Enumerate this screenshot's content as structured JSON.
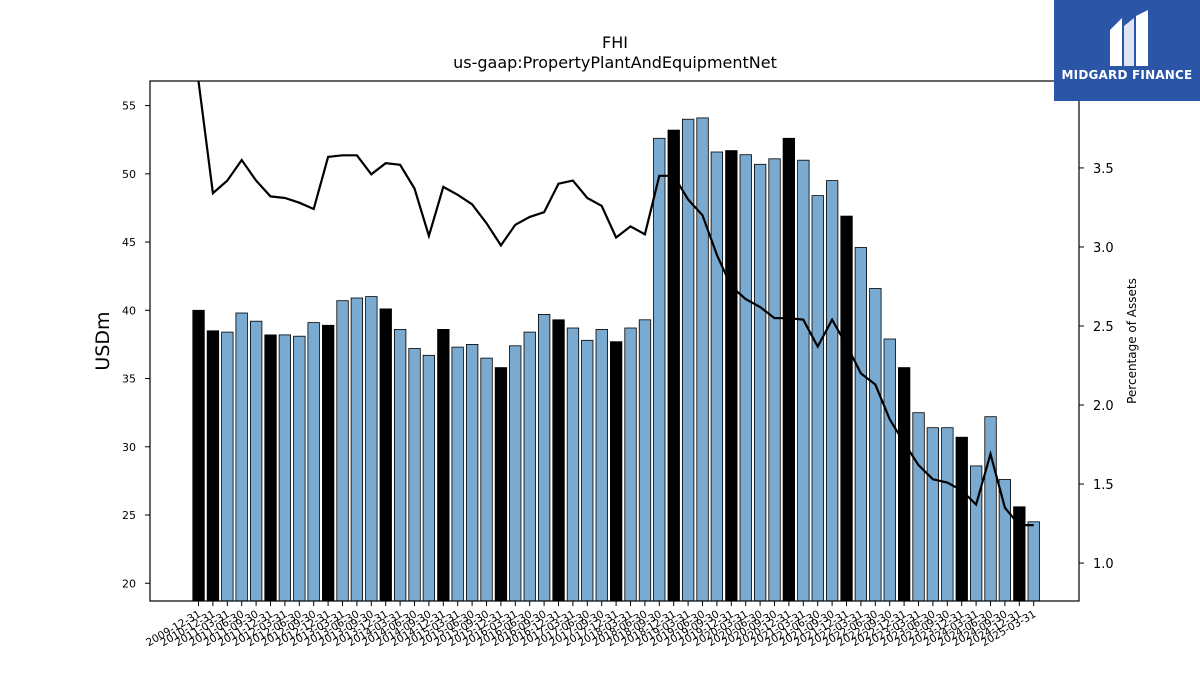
{
  "brand": {
    "name": "MIDGARD FINANCE",
    "color": "#2b55a6"
  },
  "chart_data": {
    "type": "bar",
    "title": "FHI",
    "subtitle": "us-gaap:PropertyPlantAndEquipmentNet",
    "ylabel": "USDm",
    "y2label": "Percentage of Assets",
    "ylim": [
      18.7,
      56.8
    ],
    "y2lim": [
      0.76,
      4.05
    ],
    "yticks": [
      20,
      25,
      30,
      35,
      40,
      45,
      50,
      55
    ],
    "y2ticks": [
      1.0,
      1.5,
      2.0,
      2.5,
      3.0,
      3.5
    ],
    "colors": {
      "annual": "#000000",
      "quarter": "#7aaad0",
      "line": "#000000"
    },
    "grid": false,
    "categories": [
      "2009-12-31",
      "2010-12-31",
      "2011-03-31",
      "2011-06-30",
      "2011-09-30",
      "2011-12-31",
      "2012-03-31",
      "2012-06-30",
      "2012-09-30",
      "2012-12-31",
      "2013-03-31",
      "2013-06-30",
      "2013-09-30",
      "2013-12-31",
      "2014-03-31",
      "2014-06-30",
      "2014-09-30",
      "2014-12-31",
      "2015-03-31",
      "2015-06-30",
      "2015-09-30",
      "2015-12-31",
      "2016-03-31",
      "2016-06-30",
      "2016-09-30",
      "2016-12-31",
      "2017-03-31",
      "2017-06-30",
      "2017-09-30",
      "2017-12-31",
      "2018-03-31",
      "2018-06-30",
      "2018-09-30",
      "2018-12-31",
      "2019-03-31",
      "2019-06-30",
      "2019-09-30",
      "2019-12-31",
      "2020-03-31",
      "2020-06-30",
      "2020-09-30",
      "2020-12-31",
      "2021-03-31",
      "2021-06-30",
      "2021-09-30",
      "2021-12-31",
      "2022-03-31",
      "2022-06-30",
      "2022-09-30",
      "2022-12-31",
      "2023-03-31",
      "2023-06-30",
      "2023-09-30",
      "2023-12-31",
      "2024-03-31",
      "2024-06-30",
      "2024-09-30",
      "2024-12-31",
      "2025-03-31"
    ],
    "series": [
      {
        "values": [
          40.0,
          38.5,
          38.4,
          39.8,
          39.2,
          38.2,
          38.2,
          38.1,
          39.1,
          38.9,
          40.7,
          40.9,
          41.0,
          40.1,
          38.6,
          37.2,
          36.7,
          38.6,
          37.3,
          37.5,
          36.5,
          35.8,
          37.4,
          38.4,
          39.7,
          39.3,
          38.7,
          37.8,
          38.6,
          37.7,
          38.7,
          39.3,
          52.6,
          53.2,
          54.0,
          54.1,
          51.6,
          51.7,
          51.4,
          50.7,
          51.1,
          52.6,
          51.0,
          48.4,
          49.5,
          46.9,
          44.6,
          41.6,
          37.9,
          35.8,
          32.5,
          31.4,
          31.4,
          30.7,
          28.6,
          32.2,
          27.6,
          25.6,
          24.5
        ],
        "annual_flags": [
          1,
          1,
          0,
          0,
          0,
          1,
          0,
          0,
          0,
          1,
          0,
          0,
          0,
          1,
          0,
          0,
          0,
          1,
          0,
          0,
          0,
          1,
          0,
          0,
          0,
          1,
          0,
          0,
          0,
          1,
          0,
          0,
          0,
          1,
          0,
          0,
          0,
          1,
          0,
          0,
          0,
          1,
          0,
          0,
          0,
          1,
          0,
          0,
          0,
          1,
          0,
          0,
          0,
          1,
          0,
          0,
          0,
          1,
          0
        ]
      },
      {
        "values": [
          4.1,
          3.34,
          3.42,
          3.55,
          3.42,
          3.32,
          3.31,
          3.28,
          3.24,
          3.57,
          3.58,
          3.58,
          3.46,
          3.53,
          3.52,
          3.37,
          3.07,
          3.38,
          3.33,
          3.27,
          3.15,
          3.01,
          3.14,
          3.19,
          3.22,
          3.4,
          3.42,
          3.31,
          3.26,
          3.06,
          3.13,
          3.08,
          3.45,
          3.45,
          3.3,
          3.2,
          2.95,
          2.75,
          2.67,
          2.62,
          2.55,
          2.55,
          2.54,
          2.37,
          2.54,
          2.38,
          2.2,
          2.13,
          1.91,
          1.76,
          1.62,
          1.53,
          1.51,
          1.46,
          1.37,
          1.69,
          1.35,
          1.24,
          1.24
        ]
      }
    ]
  }
}
